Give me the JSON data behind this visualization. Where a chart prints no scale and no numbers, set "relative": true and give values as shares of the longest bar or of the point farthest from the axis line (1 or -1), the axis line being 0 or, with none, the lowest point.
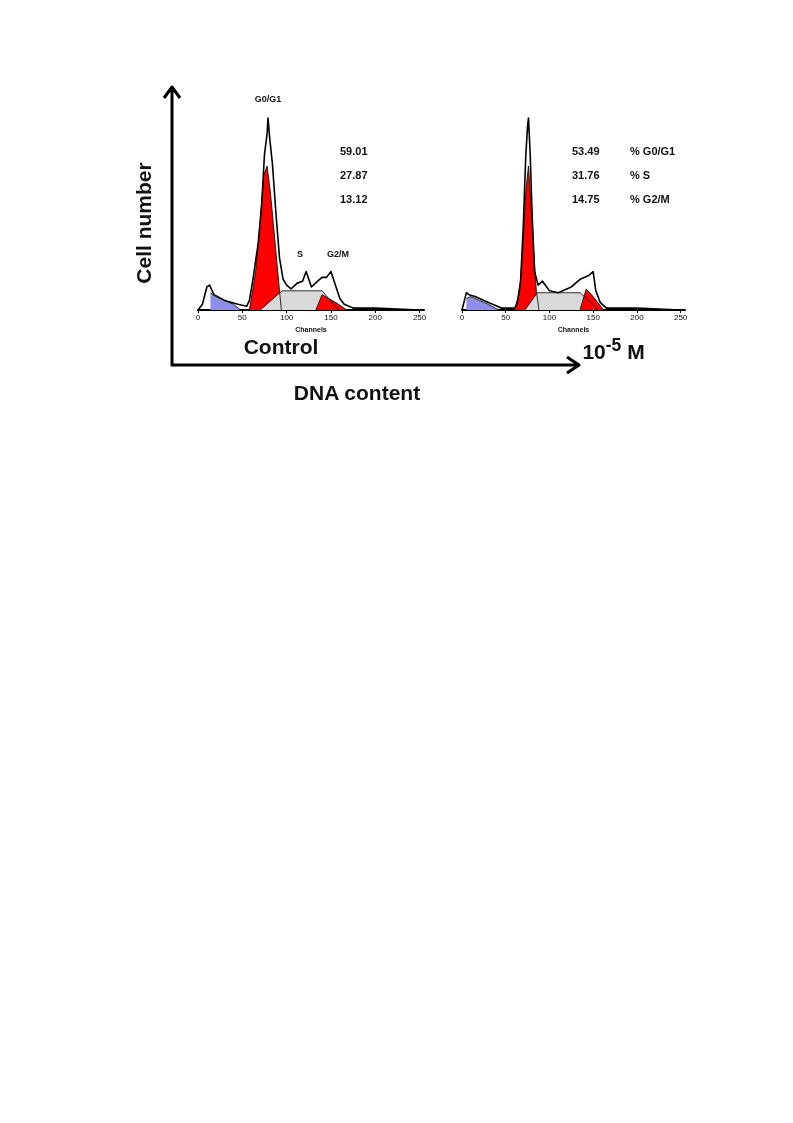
{
  "chart_data": [
    {
      "type": "area",
      "relative": true,
      "title": "Control",
      "xlabel": "Channels",
      "ylabel": "Cell number",
      "xlim": [
        0,
        255
      ],
      "xticks": [
        0,
        50,
        100,
        150,
        200,
        250
      ],
      "marker": "none",
      "annotations": [
        "G0/G1",
        "S",
        "G2/M",
        "59.01",
        "27.87",
        "13.12",
        "DNA content"
      ],
      "series": [
        {
          "type": "line",
          "color": "#000000",
          "x": [
            0,
            5,
            10,
            13,
            18,
            30,
            45,
            55,
            58,
            62,
            68,
            72,
            75,
            78,
            79,
            81,
            84,
            88,
            92,
            96,
            100,
            105,
            112,
            118,
            122,
            128,
            135,
            140,
            145,
            150,
            155,
            160,
            165,
            175,
            200,
            250
          ],
          "values": [
            0,
            0.03,
            0.12,
            0.13,
            0.08,
            0.05,
            0.03,
            0.02,
            0.05,
            0.16,
            0.35,
            0.56,
            0.81,
            0.92,
            1,
            0.89,
            0.76,
            0.5,
            0.27,
            0.16,
            0.13,
            0.11,
            0.14,
            0.15,
            0.2,
            0.12,
            0.15,
            0.17,
            0.17,
            0.2,
            0.13,
            0.06,
            0.03,
            0.01,
            0.01,
            0
          ]
        },
        {
          "color": "#8f8fe6",
          "x": [
            14,
            20,
            30,
            40,
            48
          ],
          "values": [
            0.09,
            0.07,
            0.05,
            0.03,
            0
          ]
        },
        {
          "color": "#ff0000",
          "x": [
            58,
            65,
            70,
            74,
            78,
            82,
            86,
            92,
            94
          ],
          "values": [
            0,
            0.2,
            0.45,
            0.7,
            0.75,
            0.6,
            0.4,
            0.1,
            0
          ]
        },
        {
          "color": "#d9d9d9",
          "x": [
            70,
            95,
            140,
            155,
            160
          ],
          "values": [
            0,
            0.1,
            0.1,
            0.02,
            0
          ]
        },
        {
          "color": "#ff0000",
          "x": [
            133,
            140,
            155,
            168
          ],
          "values": [
            0,
            0.08,
            0.04,
            0
          ]
        }
      ]
    },
    {
      "type": "area",
      "relative": true,
      "title": "10$^{-5}$ M",
      "xlabel": "Channels",
      "xlim": [
        0,
        255
      ],
      "xticks": [
        0,
        50,
        100,
        150,
        200,
        250
      ],
      "marker": "none",
      "annotations": [
        "53.49",
        "31.76",
        "14.75",
        "% G0/G1",
        "% S",
        "% G2/M"
      ],
      "series": [
        {
          "type": "line",
          "color": "#000000",
          "x": [
            0,
            5,
            8,
            15,
            25,
            35,
            45,
            60,
            63,
            67,
            70,
            73,
            75,
            76,
            78,
            80,
            83,
            87,
            92,
            100,
            110,
            125,
            135,
            145,
            150,
            153,
            158,
            165,
            200,
            250
          ],
          "values": [
            0,
            0.09,
            0.08,
            0.07,
            0.05,
            0.03,
            0.01,
            0.01,
            0.03,
            0.15,
            0.43,
            0.81,
            0.96,
            1,
            0.81,
            0.52,
            0.2,
            0.13,
            0.15,
            0.1,
            0.09,
            0.12,
            0.16,
            0.18,
            0.2,
            0.1,
            0.04,
            0.01,
            0.01,
            0
          ]
        },
        {
          "color": "#8f8fe6",
          "x": [
            5,
            10,
            20,
            30,
            38,
            42
          ],
          "values": [
            0.06,
            0.07,
            0.05,
            0.03,
            0.01,
            0
          ]
        },
        {
          "color": "#ff0000",
          "x": [
            60,
            66,
            70,
            73,
            76,
            79,
            82,
            85,
            88
          ],
          "values": [
            0,
            0.1,
            0.35,
            0.62,
            0.75,
            0.55,
            0.3,
            0.1,
            0
          ]
        },
        {
          "color": "#d9d9d9",
          "x": [
            72,
            86,
            135,
            150,
            155
          ],
          "values": [
            0,
            0.09,
            0.09,
            0.03,
            0
          ]
        },
        {
          "color": "#ff0000",
          "x": [
            135,
            142,
            150,
            162
          ],
          "values": [
            0,
            0.11,
            0.07,
            0
          ]
        }
      ]
    }
  ]
}
